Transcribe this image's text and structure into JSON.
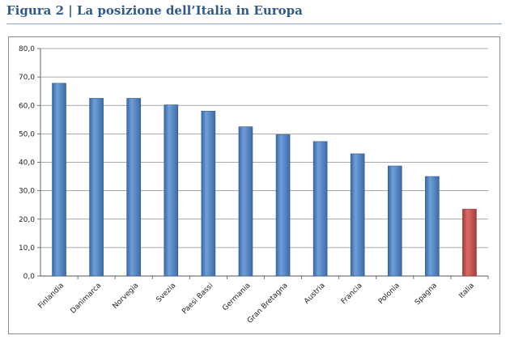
{
  "figure": {
    "title": "Figura 2 | La posizione dell’Italia in Europa"
  },
  "colors": {
    "title": "#2f5a8a",
    "bar_default": "#4f81bd",
    "bar_highlight": "#c0504d",
    "grid": "#8c8c8c"
  },
  "chart_data": {
    "type": "bar",
    "title": "",
    "xlabel": "",
    "ylabel": "",
    "ylim": [
      0,
      80
    ],
    "yticks": [
      "0,0",
      "10,0",
      "20,0",
      "30,0",
      "40,0",
      "50,0",
      "60,0",
      "70,0",
      "80,0"
    ],
    "ytick_values": [
      0,
      10,
      20,
      30,
      40,
      50,
      60,
      70,
      80
    ],
    "grid": true,
    "categories": [
      "Finlandia",
      "Danimarca",
      "Norvegia",
      "Svezia",
      "Paesi Bassi",
      "Germania",
      "Gran Bretagna",
      "Austria",
      "Francia",
      "Polonia",
      "Spagna",
      "Italia"
    ],
    "values": [
      67.8,
      62.5,
      62.5,
      60.2,
      58.0,
      52.5,
      49.7,
      47.3,
      43.0,
      38.7,
      35.0,
      23.5
    ],
    "highlight": "Italia"
  }
}
